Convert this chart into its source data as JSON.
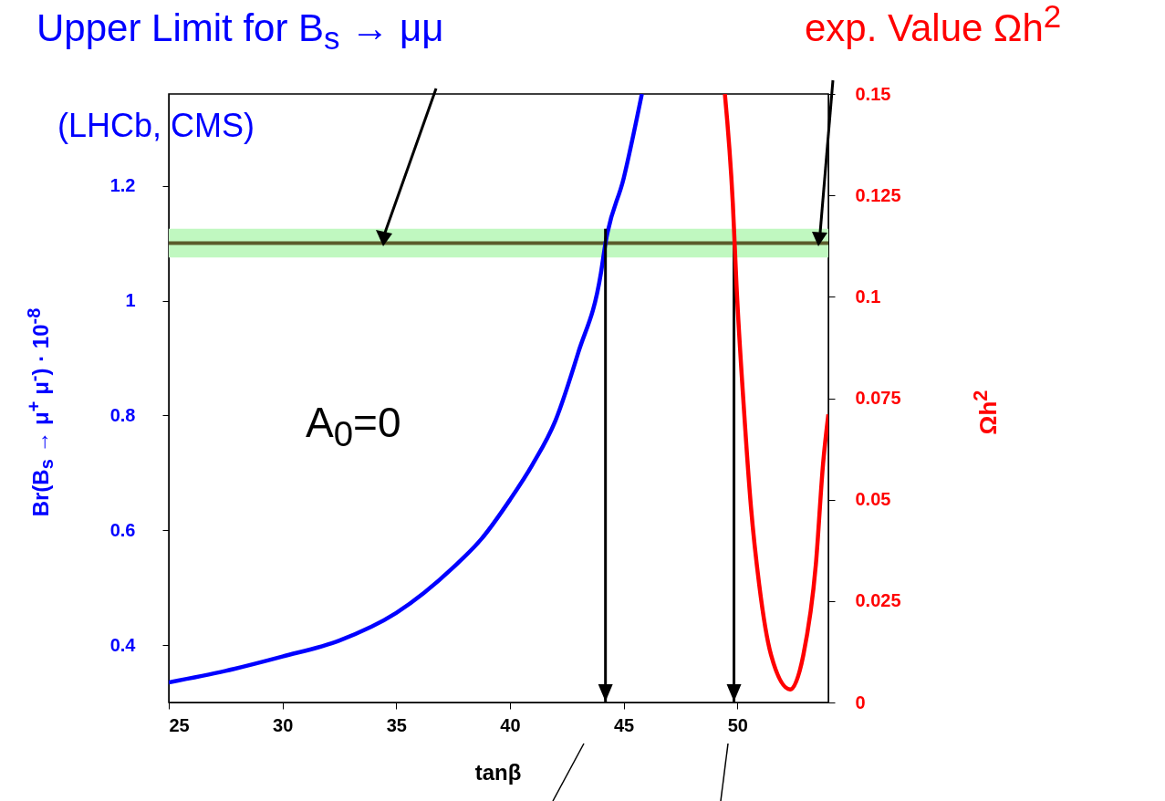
{
  "chart_data": {
    "type": "line",
    "title": "Upper Limit for B$_{s}$ → μμ",
    "subtitle": "(LHCb, CMS)",
    "xlabel": "tanβ",
    "ylabel": "Br(B$_{s}$ → μ$^{+}$ μ$^{-}$) · 10$^{-8}$",
    "y2label": "Ωh$^{2}$",
    "annotations": [
      "exp. Value Ωh$^{2}$",
      "A$_{0}$=0"
    ],
    "series": [
      {
        "color": "#0000ff",
        "x": [
          25,
          27.5,
          30,
          32.5,
          35,
          37.5,
          38.75,
          40,
          41,
          42,
          43,
          44,
          44.2,
          45,
          45.8
        ],
        "values": [
          0.335,
          0.355,
          0.38,
          0.408,
          0.456,
          0.535,
          0.585,
          0.653,
          0.715,
          0.791,
          0.909,
          1.048,
          1.1,
          1.213,
          1.36
        ]
      },
      {
        "color": "#ff0000",
        "axis": "y2",
        "x": [
          49.45,
          49.8,
          49.96,
          50.28,
          50.6,
          50.96,
          51.48,
          52.32,
          52.9,
          53.45,
          53.77,
          54.0
        ],
        "values": [
          0.15,
          0.123,
          0.103,
          0.073,
          0.048,
          0.029,
          0.0117,
          0.0032,
          0.0117,
          0.034,
          0.059,
          0.071
        ]
      }
    ],
    "xlim": [
      25,
      54
    ],
    "xticks": [
      25,
      30,
      35,
      40,
      45,
      50
    ],
    "ylim": [
      0.3,
      1.36
    ],
    "yticks": [
      0.4,
      0.6,
      0.8,
      1,
      1.2
    ],
    "y2lim": [
      0,
      0.15
    ],
    "y2ticks": [
      0,
      0.025,
      0.05,
      0.075,
      0.1,
      0.125,
      0.15
    ],
    "ref_lines": [
      {
        "axis": "y",
        "value": 1.1,
        "color": "#5b5b2b"
      },
      {
        "axis": "x",
        "value": 44.2,
        "color": "#000000"
      },
      {
        "axis": "x",
        "value": 49.85,
        "color": "#000000"
      }
    ],
    "bands": [
      {
        "axis": "y",
        "from": 1.075,
        "to": 1.125,
        "color": "#c0f8c0"
      }
    ],
    "grid": false
  }
}
